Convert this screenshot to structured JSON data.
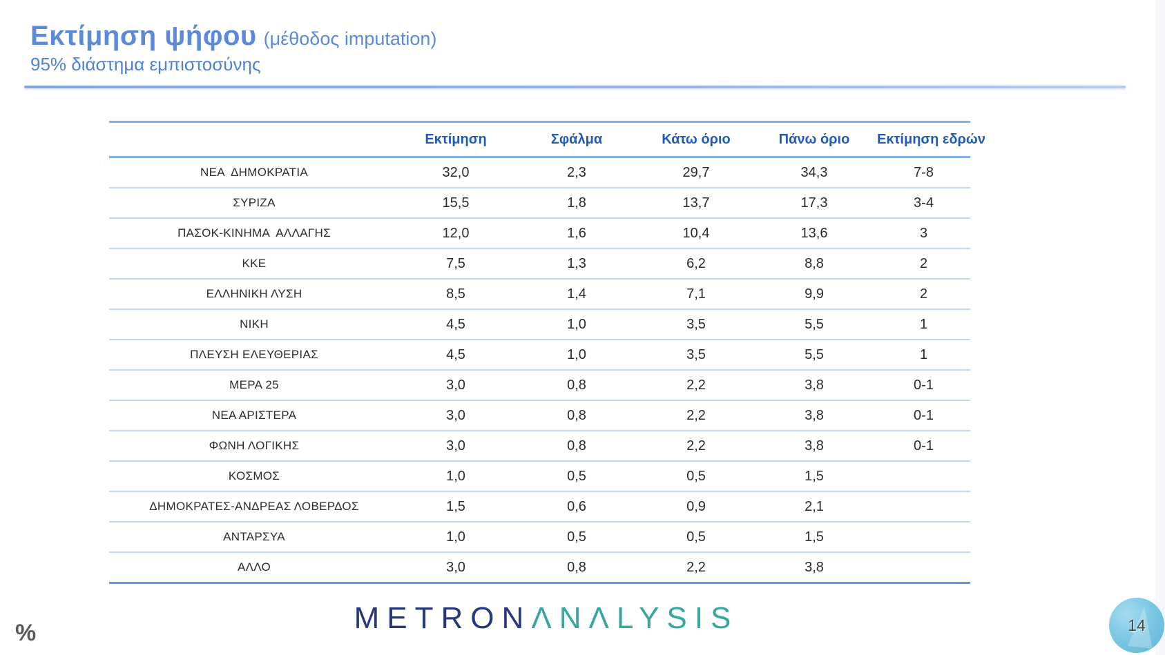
{
  "title": {
    "main": "Εκτίμηση ψήφου",
    "method": "(μέθοδος imputation)",
    "subtitle": "95% διάστημα εμπιστοσύνης"
  },
  "table": {
    "columns": [
      "Εκτίμηση",
      "Σφάλμα",
      "Κάτω όριο",
      "Πάνω όριο",
      "Εκτίμηση εδρών"
    ],
    "rows": [
      {
        "party": "ΝΕΑ  ΔΗΜΟΚΡΑΤΙΑ",
        "estimate": "32,0",
        "error": "2,3",
        "lower": "29,7",
        "upper": "34,3",
        "seats": "7-8"
      },
      {
        "party": "ΣΥΡΙΖΑ",
        "estimate": "15,5",
        "error": "1,8",
        "lower": "13,7",
        "upper": "17,3",
        "seats": "3-4"
      },
      {
        "party": "ΠΑΣΟΚ-ΚΙΝΗΜΑ  ΑΛΛΑΓΗΣ",
        "estimate": "12,0",
        "error": "1,6",
        "lower": "10,4",
        "upper": "13,6",
        "seats": "3"
      },
      {
        "party": "ΚΚΕ",
        "estimate": "7,5",
        "error": "1,3",
        "lower": "6,2",
        "upper": "8,8",
        "seats": "2"
      },
      {
        "party": "ΕΛΛΗΝΙΚΗ ΛΥΣΗ",
        "estimate": "8,5",
        "error": "1,4",
        "lower": "7,1",
        "upper": "9,9",
        "seats": "2"
      },
      {
        "party": "ΝΙΚΗ",
        "estimate": "4,5",
        "error": "1,0",
        "lower": "3,5",
        "upper": "5,5",
        "seats": "1"
      },
      {
        "party": "ΠΛΕΥΣΗ ΕΛΕΥΘΕΡΙΑΣ",
        "estimate": "4,5",
        "error": "1,0",
        "lower": "3,5",
        "upper": "5,5",
        "seats": "1"
      },
      {
        "party": "ΜΕΡΑ 25",
        "estimate": "3,0",
        "error": "0,8",
        "lower": "2,2",
        "upper": "3,8",
        "seats": "0-1"
      },
      {
        "party": "ΝΕΑ ΑΡΙΣΤΕΡΑ",
        "estimate": "3,0",
        "error": "0,8",
        "lower": "2,2",
        "upper": "3,8",
        "seats": "0-1"
      },
      {
        "party": "ΦΩΝΗ ΛΟΓΙΚΗΣ",
        "estimate": "3,0",
        "error": "0,8",
        "lower": "2,2",
        "upper": "3,8",
        "seats": "0-1"
      },
      {
        "party": "ΚΟΣΜΟΣ",
        "estimate": "1,0",
        "error": "0,5",
        "lower": "0,5",
        "upper": "1,5",
        "seats": ""
      },
      {
        "party": "ΔΗΜΟΚΡΑΤΕΣ-ΑΝΔΡΕΑΣ ΛΟΒΕΡΔΟΣ",
        "estimate": "1,5",
        "error": "0,6",
        "lower": "0,9",
        "upper": "2,1",
        "seats": ""
      },
      {
        "party": "ΑΝΤΑΡΣΥΑ",
        "estimate": "1,0",
        "error": "0,5",
        "lower": "0,5",
        "upper": "1,5",
        "seats": ""
      },
      {
        "party": "ΑΛΛΟ",
        "estimate": "3,0",
        "error": "0,8",
        "lower": "2,2",
        "upper": "3,8",
        "seats": ""
      }
    ]
  },
  "footer": {
    "percent_label": "%",
    "logo": {
      "part1": "METRON",
      "part2": "ΛΝΛLYSIS"
    },
    "page_number": "14"
  },
  "colors": {
    "title_blue": "#5b8ad8",
    "subtitle_blue": "#4f82d6",
    "header_text_blue": "#1f5bb7",
    "header_line_blue": "#85acea",
    "row_line_blue": "#bfd8f2",
    "table_bottom_blue": "#5e9bdd",
    "body_text": "#2b2b2b",
    "logo_navy": "#27397b",
    "logo_teal": "#39a5a0",
    "badge_blue": "#7cc8e4",
    "percent_gray": "#595959"
  }
}
